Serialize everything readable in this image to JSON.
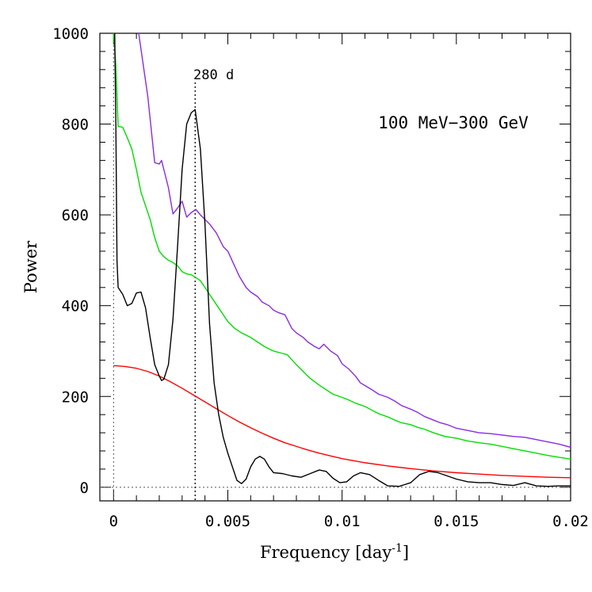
{
  "chart_data": {
    "type": "line",
    "xlabel": "Frequency [day",
    "xlabel_sup": "-1",
    "xlabel_end": "]",
    "ylabel": "Power",
    "xlim": [
      -0.0006,
      0.02
    ],
    "ylim": [
      -30,
      1000
    ],
    "x_ticks": [
      {
        "value": 0,
        "label": "0"
      },
      {
        "value": 0.005,
        "label": "0.005"
      },
      {
        "value": 0.01,
        "label": "0.01"
      },
      {
        "value": 0.015,
        "label": "0.015"
      },
      {
        "value": 0.02,
        "label": "0.02"
      }
    ],
    "y_ticks": [
      {
        "value": 0,
        "label": "0"
      },
      {
        "value": 200,
        "label": "200"
      },
      {
        "value": 400,
        "label": "400"
      },
      {
        "value": 600,
        "label": "600"
      },
      {
        "value": 800,
        "label": "800"
      },
      {
        "value": 1000,
        "label": "1000"
      }
    ],
    "annotations": {
      "energy_band": "100 MeV−300 GeV",
      "peak_label": "280 d",
      "peak_frequency": 0.00357
    },
    "series": [
      {
        "color": "#8a2be2",
        "points": [
          [
            0.0011,
            1000
          ],
          [
            0.0015,
            860
          ],
          [
            0.0018,
            715
          ],
          [
            0.002,
            712
          ],
          [
            0.0021,
            720
          ],
          [
            0.0024,
            660
          ],
          [
            0.0026,
            602
          ],
          [
            0.0028,
            615
          ],
          [
            0.003,
            630
          ],
          [
            0.0032,
            595
          ],
          [
            0.0034,
            605
          ],
          [
            0.0036,
            612
          ],
          [
            0.0038,
            600
          ],
          [
            0.004,
            590
          ],
          [
            0.0042,
            580
          ],
          [
            0.0045,
            560
          ],
          [
            0.0048,
            530
          ],
          [
            0.005,
            520
          ],
          [
            0.0052,
            498
          ],
          [
            0.0055,
            465
          ],
          [
            0.0058,
            440
          ],
          [
            0.006,
            430
          ],
          [
            0.0063,
            420
          ],
          [
            0.0065,
            408
          ],
          [
            0.0068,
            400
          ],
          [
            0.007,
            390
          ],
          [
            0.0072,
            385
          ],
          [
            0.0075,
            380
          ],
          [
            0.0078,
            350
          ],
          [
            0.008,
            340
          ],
          [
            0.0083,
            330
          ],
          [
            0.0085,
            320
          ],
          [
            0.0088,
            310
          ],
          [
            0.009,
            305
          ],
          [
            0.0092,
            315
          ],
          [
            0.0095,
            300
          ],
          [
            0.0098,
            290
          ],
          [
            0.01,
            272
          ],
          [
            0.0103,
            260
          ],
          [
            0.0106,
            244
          ],
          [
            0.0108,
            230
          ],
          [
            0.011,
            224
          ],
          [
            0.0113,
            215
          ],
          [
            0.0116,
            205
          ],
          [
            0.012,
            198
          ],
          [
            0.0123,
            190
          ],
          [
            0.0126,
            180
          ],
          [
            0.013,
            172
          ],
          [
            0.0133,
            165
          ],
          [
            0.0136,
            156
          ],
          [
            0.014,
            148
          ],
          [
            0.0143,
            142
          ],
          [
            0.0146,
            138
          ],
          [
            0.015,
            130
          ],
          [
            0.0155,
            125
          ],
          [
            0.016,
            120
          ],
          [
            0.0165,
            118
          ],
          [
            0.017,
            115
          ],
          [
            0.0175,
            112
          ],
          [
            0.018,
            110
          ],
          [
            0.0185,
            105
          ],
          [
            0.019,
            100
          ],
          [
            0.0195,
            95
          ],
          [
            0.02,
            88
          ]
        ]
      },
      {
        "color": "#00dd00",
        "points": [
          [
            0,
            1000
          ],
          [
            0.0001,
            930
          ],
          [
            0.0002,
            795
          ],
          [
            0.0004,
            793
          ],
          [
            0.0006,
            770
          ],
          [
            0.0008,
            745
          ],
          [
            0.001,
            700
          ],
          [
            0.0012,
            650
          ],
          [
            0.0014,
            620
          ],
          [
            0.0016,
            590
          ],
          [
            0.0018,
            550
          ],
          [
            0.002,
            520
          ],
          [
            0.0022,
            508
          ],
          [
            0.0024,
            500
          ],
          [
            0.0026,
            495
          ],
          [
            0.0028,
            488
          ],
          [
            0.003,
            475
          ],
          [
            0.0032,
            470
          ],
          [
            0.0034,
            468
          ],
          [
            0.0036,
            462
          ],
          [
            0.0038,
            455
          ],
          [
            0.004,
            440
          ],
          [
            0.0042,
            425
          ],
          [
            0.0044,
            410
          ],
          [
            0.0046,
            395
          ],
          [
            0.0048,
            380
          ],
          [
            0.005,
            365
          ],
          [
            0.0053,
            350
          ],
          [
            0.0056,
            340
          ],
          [
            0.006,
            330
          ],
          [
            0.0063,
            320
          ],
          [
            0.0066,
            310
          ],
          [
            0.007,
            300
          ],
          [
            0.0073,
            296
          ],
          [
            0.0076,
            292
          ],
          [
            0.008,
            270
          ],
          [
            0.0083,
            255
          ],
          [
            0.0086,
            240
          ],
          [
            0.009,
            225
          ],
          [
            0.0093,
            215
          ],
          [
            0.0096,
            205
          ],
          [
            0.01,
            198
          ],
          [
            0.0103,
            192
          ],
          [
            0.0106,
            185
          ],
          [
            0.011,
            178
          ],
          [
            0.0113,
            170
          ],
          [
            0.0116,
            162
          ],
          [
            0.012,
            155
          ],
          [
            0.0123,
            148
          ],
          [
            0.0126,
            142
          ],
          [
            0.013,
            138
          ],
          [
            0.0133,
            132
          ],
          [
            0.0136,
            128
          ],
          [
            0.014,
            120
          ],
          [
            0.0145,
            112
          ],
          [
            0.015,
            108
          ],
          [
            0.0155,
            102
          ],
          [
            0.016,
            98
          ],
          [
            0.0165,
            95
          ],
          [
            0.017,
            90
          ],
          [
            0.0175,
            85
          ],
          [
            0.018,
            80
          ],
          [
            0.0185,
            75
          ],
          [
            0.019,
            70
          ],
          [
            0.0195,
            66
          ],
          [
            0.02,
            62
          ]
        ]
      },
      {
        "color": "#ff0000",
        "points": [
          [
            0,
            268
          ],
          [
            0.0005,
            266
          ],
          [
            0.001,
            262
          ],
          [
            0.0015,
            255
          ],
          [
            0.002,
            245
          ],
          [
            0.0025,
            232
          ],
          [
            0.003,
            218
          ],
          [
            0.0035,
            203
          ],
          [
            0.004,
            188
          ],
          [
            0.0045,
            173
          ],
          [
            0.005,
            158
          ],
          [
            0.0055,
            144
          ],
          [
            0.006,
            131
          ],
          [
            0.0065,
            119
          ],
          [
            0.007,
            108
          ],
          [
            0.0075,
            98
          ],
          [
            0.008,
            90
          ],
          [
            0.0085,
            82
          ],
          [
            0.009,
            75
          ],
          [
            0.0095,
            69
          ],
          [
            0.01,
            63
          ],
          [
            0.011,
            54
          ],
          [
            0.012,
            47
          ],
          [
            0.013,
            41
          ],
          [
            0.014,
            36
          ],
          [
            0.015,
            32
          ],
          [
            0.016,
            29
          ],
          [
            0.017,
            26
          ],
          [
            0.018,
            24
          ],
          [
            0.019,
            22
          ],
          [
            0.02,
            21
          ]
        ]
      },
      {
        "color": "#000000",
        "points": [
          [
            5e-05,
            1000
          ],
          [
            0.0001,
            800
          ],
          [
            0.00015,
            500
          ],
          [
            0.0002,
            440
          ],
          [
            0.0004,
            425
          ],
          [
            0.0006,
            400
          ],
          [
            0.0008,
            405
          ],
          [
            0.001,
            428
          ],
          [
            0.0012,
            430
          ],
          [
            0.0014,
            395
          ],
          [
            0.0016,
            330
          ],
          [
            0.0018,
            270
          ],
          [
            0.002,
            245
          ],
          [
            0.0021,
            235
          ],
          [
            0.0022,
            238
          ],
          [
            0.0024,
            270
          ],
          [
            0.0026,
            370
          ],
          [
            0.0028,
            530
          ],
          [
            0.003,
            700
          ],
          [
            0.0032,
            800
          ],
          [
            0.0034,
            825
          ],
          [
            0.00357,
            832
          ],
          [
            0.0038,
            745
          ],
          [
            0.004,
            580
          ],
          [
            0.0042,
            360
          ],
          [
            0.0044,
            230
          ],
          [
            0.0046,
            160
          ],
          [
            0.0048,
            110
          ],
          [
            0.005,
            75
          ],
          [
            0.0052,
            45
          ],
          [
            0.0054,
            15
          ],
          [
            0.0056,
            8
          ],
          [
            0.0058,
            18
          ],
          [
            0.006,
            45
          ],
          [
            0.0062,
            62
          ],
          [
            0.0064,
            68
          ],
          [
            0.0066,
            62
          ],
          [
            0.0068,
            45
          ],
          [
            0.007,
            32
          ],
          [
            0.0074,
            30
          ],
          [
            0.0078,
            25
          ],
          [
            0.0082,
            22
          ],
          [
            0.0086,
            30
          ],
          [
            0.009,
            38
          ],
          [
            0.0093,
            35
          ],
          [
            0.0096,
            20
          ],
          [
            0.0099,
            10
          ],
          [
            0.0102,
            12
          ],
          [
            0.0105,
            25
          ],
          [
            0.0108,
            32
          ],
          [
            0.0112,
            28
          ],
          [
            0.0116,
            15
          ],
          [
            0.012,
            3
          ],
          [
            0.0125,
            2
          ],
          [
            0.013,
            10
          ],
          [
            0.0134,
            28
          ],
          [
            0.0138,
            35
          ],
          [
            0.0142,
            32
          ],
          [
            0.0146,
            25
          ],
          [
            0.015,
            18
          ],
          [
            0.0155,
            12
          ],
          [
            0.016,
            10
          ],
          [
            0.0165,
            10
          ],
          [
            0.017,
            6
          ],
          [
            0.0175,
            4
          ],
          [
            0.018,
            10
          ],
          [
            0.0185,
            3
          ],
          [
            0.019,
            2
          ],
          [
            0.0195,
            3
          ],
          [
            0.02,
            3
          ]
        ]
      }
    ]
  }
}
